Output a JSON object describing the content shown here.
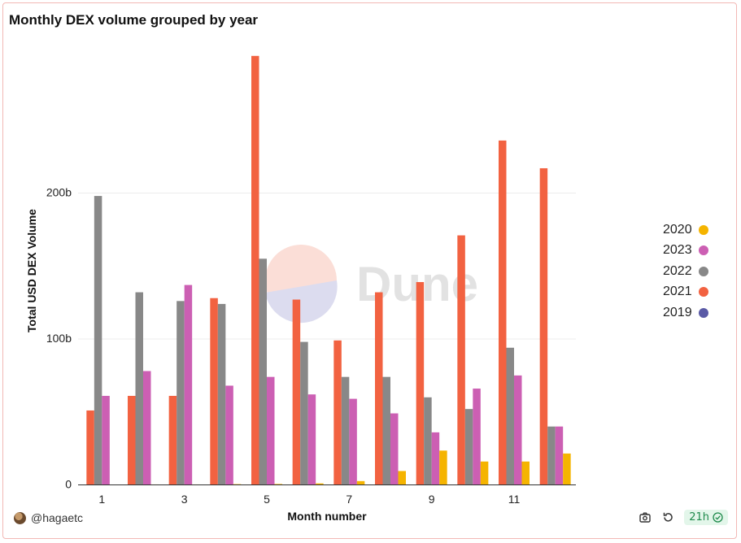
{
  "title": "Monthly DEX volume grouped by year",
  "footer": {
    "author": "@hagaetc",
    "refresh_badge": "21h"
  },
  "watermark": "Dune",
  "colors": {
    "2020": "#f5b400",
    "2023": "#cc5fb3",
    "2022": "#888888",
    "2021": "#f26241",
    "2019": "#5a5aa6"
  },
  "chart_data": {
    "type": "bar",
    "title": "Monthly DEX volume grouped by year",
    "xlabel": "Month number",
    "ylabel": "Total USD DEX Volume",
    "x": [
      1,
      2,
      3,
      4,
      5,
      6,
      7,
      8,
      9,
      10,
      11,
      12
    ],
    "x_tick_labels": [
      "1",
      "3",
      "5",
      "7",
      "9",
      "11"
    ],
    "y_tick_labels": [
      "0",
      "100b",
      "200b"
    ],
    "ylim": [
      0,
      300
    ],
    "y_unit": "billion USD",
    "grid": true,
    "legend_position": "right",
    "legend": [
      "2020",
      "2023",
      "2022",
      "2021",
      "2019"
    ],
    "series": [
      {
        "name": "2021",
        "values": [
          51,
          61,
          61,
          128,
          294,
          127,
          99,
          132,
          139,
          171,
          236,
          217
        ]
      },
      {
        "name": "2022",
        "values": [
          198,
          132,
          126,
          124,
          155,
          98,
          74,
          74,
          60,
          52,
          94,
          40
        ]
      },
      {
        "name": "2023",
        "values": [
          61,
          78,
          137,
          68,
          74,
          62,
          59,
          49,
          36,
          66,
          75,
          40
        ]
      },
      {
        "name": "2020",
        "values": [
          0.2,
          0.3,
          0.3,
          0.5,
          0.6,
          1.0,
          2.6,
          9.5,
          23.5,
          16,
          16,
          21.5
        ]
      }
    ]
  }
}
